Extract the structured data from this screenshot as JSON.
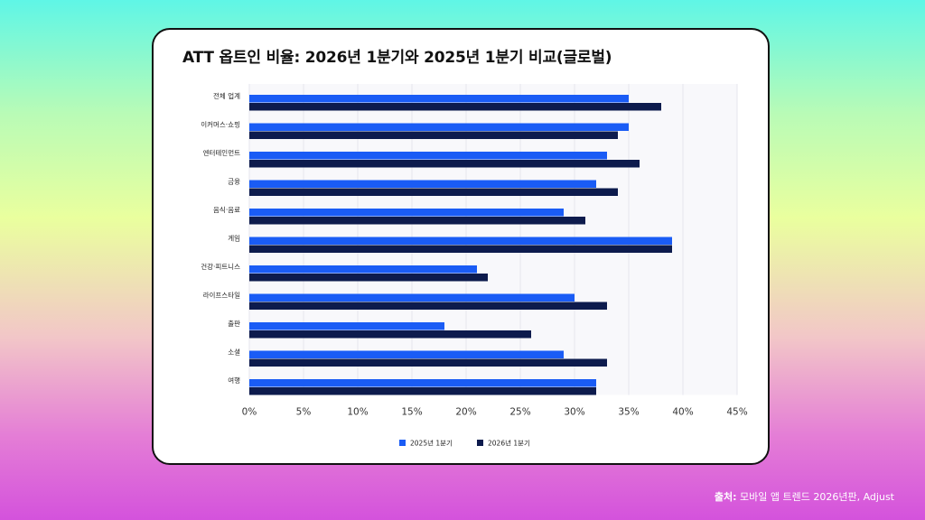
{
  "footer": {
    "label": "출처:",
    "text": "모바일 앱 트렌드 2026년판, Adjust"
  },
  "colors": {
    "series_2025": "#1a5cf5",
    "series_2026": "#0d1b4d"
  },
  "chart_data": {
    "type": "bar",
    "orientation": "horizontal",
    "title": "ATT 옵트인 비율: 2026년 1분기와 2025년 1분기 비교(글로벌)",
    "categories": [
      "전체 업계",
      "이커머스·쇼핑",
      "엔터테인먼트",
      "금융",
      "음식·음료",
      "게임",
      "건강·피트니스",
      "라이프스타일",
      "출판",
      "소셜",
      "여행"
    ],
    "series": [
      {
        "name": "2025년 1분기",
        "values": [
          35,
          35,
          33,
          32,
          29,
          39,
          21,
          30,
          18,
          29,
          32
        ]
      },
      {
        "name": "2026년 1분기",
        "values": [
          38,
          34,
          36,
          34,
          31,
          39,
          22,
          33,
          26,
          33,
          32
        ]
      }
    ],
    "xlim": [
      0,
      45
    ],
    "xticks": [
      "0%",
      "5%",
      "10%",
      "15%",
      "20%",
      "25%",
      "30%",
      "35%",
      "40%",
      "45%"
    ],
    "xtick_values": [
      0,
      5,
      10,
      15,
      20,
      25,
      30,
      35,
      40,
      45
    ],
    "grid": true,
    "legend_position": "bottom"
  }
}
